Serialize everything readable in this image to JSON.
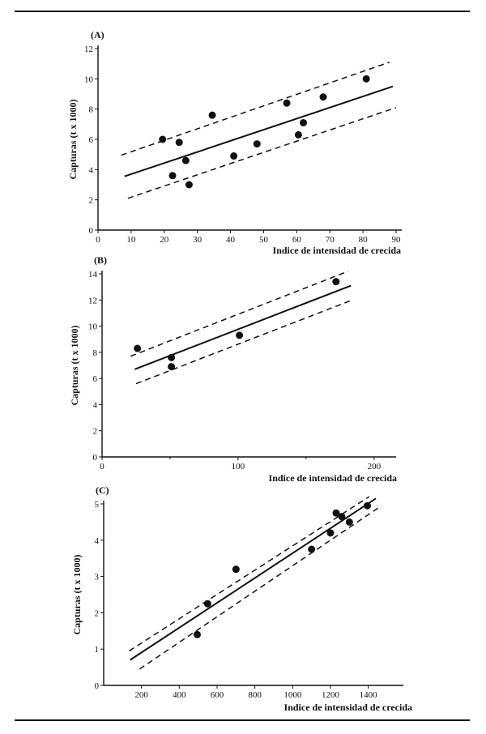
{
  "chart_data": [
    {
      "type": "scatter",
      "panel_label": "(A)",
      "xlabel": "Indice de intensidad de crecida",
      "ylabel": "Capturas (t x 1000)",
      "xlim": [
        0,
        90
      ],
      "ylim": [
        0,
        12
      ],
      "xticks": [
        0,
        10,
        20,
        30,
        40,
        50,
        60,
        70,
        80,
        90
      ],
      "yticks": [
        0,
        2,
        4,
        6,
        8,
        10,
        12
      ],
      "points": [
        {
          "x": 19.5,
          "y": 6.0
        },
        {
          "x": 22.5,
          "y": 3.6
        },
        {
          "x": 24.5,
          "y": 5.8
        },
        {
          "x": 26.5,
          "y": 4.6
        },
        {
          "x": 27.5,
          "y": 3.0
        },
        {
          "x": 34.5,
          "y": 7.6
        },
        {
          "x": 41,
          "y": 4.9
        },
        {
          "x": 48,
          "y": 5.7
        },
        {
          "x": 57,
          "y": 8.4
        },
        {
          "x": 60.5,
          "y": 6.3
        },
        {
          "x": 62,
          "y": 7.1
        },
        {
          "x": 68,
          "y": 8.8
        },
        {
          "x": 81,
          "y": 10.0
        }
      ],
      "fit_line": [
        [
          8,
          3.55
        ],
        [
          89,
          9.5
        ]
      ],
      "upper_band": [
        [
          7,
          4.95
        ],
        [
          88,
          11.1
        ]
      ],
      "lower_band": [
        [
          9,
          2.1
        ],
        [
          90,
          8.1
        ]
      ],
      "grid": false,
      "legend": "none"
    },
    {
      "type": "scatter",
      "panel_label": "(B)",
      "xlabel": "Indice de intensidad de crecida",
      "ylabel": "Capturas (t x 1000)",
      "xlim": [
        0,
        215
      ],
      "ylim": [
        0,
        14
      ],
      "xticks": [
        0,
        100,
        200
      ],
      "yticks": [
        0,
        2,
        4,
        6,
        8,
        10,
        12,
        14
      ],
      "minor_xticks": [
        50,
        150
      ],
      "points": [
        {
          "x": 26,
          "y": 8.3
        },
        {
          "x": 51,
          "y": 7.6
        },
        {
          "x": 51,
          "y": 6.9
        },
        {
          "x": 101,
          "y": 9.3
        },
        {
          "x": 172,
          "y": 13.4
        }
      ],
      "fit_line": [
        [
          24,
          6.7
        ],
        [
          183,
          13.1
        ]
      ],
      "upper_band": [
        [
          21,
          7.7
        ],
        [
          181,
          14.2
        ]
      ],
      "lower_band": [
        [
          25,
          5.6
        ],
        [
          184,
          12.0
        ]
      ],
      "grid": false,
      "legend": "none"
    },
    {
      "type": "scatter",
      "panel_label": "(C)",
      "xlabel": "Indice de intensidad de crecida",
      "ylabel": "Capturas (t x 1000)",
      "xlim": [
        0,
        1500
      ],
      "ylim": [
        0,
        5
      ],
      "xticks": [
        200,
        400,
        600,
        800,
        1000,
        1200,
        1400
      ],
      "yticks": [
        0,
        1,
        2,
        3,
        4,
        5
      ],
      "points": [
        {
          "x": 495,
          "y": 1.4
        },
        {
          "x": 550,
          "y": 2.25
        },
        {
          "x": 700,
          "y": 3.2
        },
        {
          "x": 1100,
          "y": 3.75
        },
        {
          "x": 1200,
          "y": 4.2
        },
        {
          "x": 1230,
          "y": 4.75
        },
        {
          "x": 1260,
          "y": 4.65
        },
        {
          "x": 1300,
          "y": 4.5
        },
        {
          "x": 1395,
          "y": 4.95
        }
      ],
      "fit_line": [
        [
          140,
          0.7
        ],
        [
          1440,
          5.15
        ]
      ],
      "upper_band": [
        [
          135,
          0.95
        ],
        [
          1405,
          5.2
        ]
      ],
      "lower_band": [
        [
          190,
          0.45
        ],
        [
          1470,
          4.95
        ]
      ],
      "grid": false,
      "legend": "none"
    }
  ]
}
